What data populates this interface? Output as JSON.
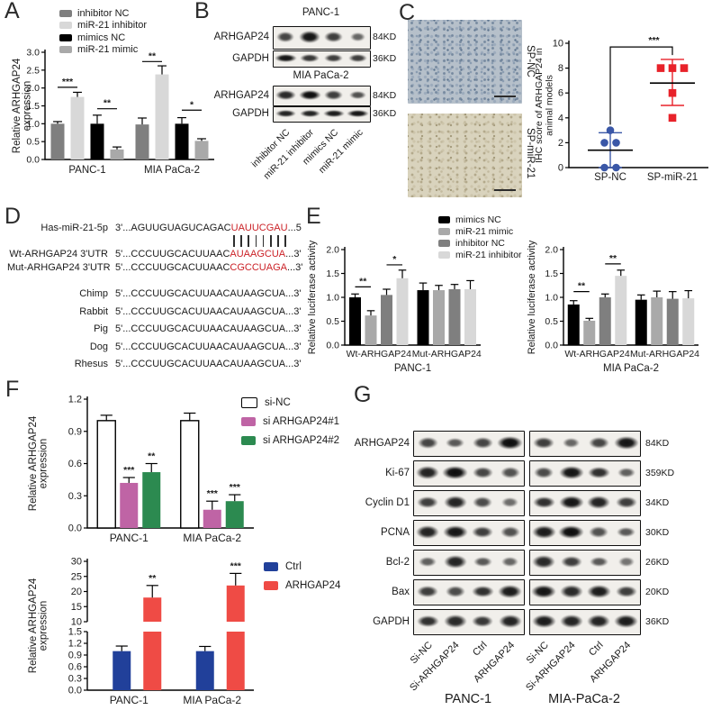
{
  "panels": {
    "A": {
      "label": "A",
      "legend": [
        {
          "label": "inhibitor NC",
          "color": "#7f7f7f"
        },
        {
          "label": "miR-21 inhibitor",
          "color": "#d8d8d8"
        },
        {
          "label": "mimics NC",
          "color": "#000000"
        },
        {
          "label": "miR-21 mimic",
          "color": "#a9a9a9"
        }
      ]
    },
    "B": {
      "label": "B",
      "groups": [
        {
          "title": "PANC-1",
          "rows": [
            {
              "protein": "ARHGAP24",
              "kd": "84KD",
              "bands": [
                0.55,
                0.9,
                0.6,
                0.3
              ]
            },
            {
              "protein": "GAPDH",
              "kd": "36KD",
              "bands": [
                0.9,
                0.65,
                0.6,
                0.6
              ]
            }
          ]
        },
        {
          "title": "MIA PaCa-2",
          "rows": [
            {
              "protein": "ARHGAP24",
              "kd": "84KD",
              "bands": [
                0.75,
                0.95,
                0.6,
                0.45
              ]
            },
            {
              "protein": "GAPDH",
              "kd": "36KD",
              "bands": [
                0.8,
                0.8,
                0.85,
                0.9
              ]
            }
          ]
        }
      ],
      "lanes": [
        "inhibitor NC",
        "miR-21 inhibitor",
        "mimics NC",
        "miR-21 mimic"
      ]
    },
    "C": {
      "label": "C",
      "images": [
        {
          "label": "SP-NC"
        },
        {
          "label": "SP-miR-21"
        }
      ]
    },
    "D": {
      "label": "D",
      "alignment": [
        {
          "name": "Has-miR-21-5p",
          "prefix": "3'...AGUUGUAGUCAGAC",
          "red": "UAUUCGAU",
          "suffix": "...5"
        },
        {
          "name": "Wt-ARHGAP24 3'UTR",
          "prefix": "5'...CCCUUGCACUUAAC",
          "red": "AUAAGCUA",
          "suffix": "...3'"
        },
        {
          "name": "Mut-ARHGAP24 3'UTR",
          "prefix": "5'...CCCUUGCACUUAAC",
          "red": "CGCCUAGA",
          "suffix": "...3'"
        }
      ],
      "pair_count": 8,
      "species": [
        {
          "name": "Chimp",
          "seq": "5'...CCCUUGCACUUAACAUAAGCUA...3'"
        },
        {
          "name": "Rabbit",
          "seq": "5'...CCCUUGCACUUAACAUAAGCUA...3'"
        },
        {
          "name": "Pig",
          "seq": "5'...CCCUUGCACUUAACAUAAGCUA...3'"
        },
        {
          "name": "Dog",
          "seq": "5'...CCCUUGCACUUAACAUAAGCUA...3'"
        },
        {
          "name": "Rhesus",
          "seq": "5'...CCCUUGCACUUAACAUAAGCUA...3'"
        }
      ]
    },
    "E": {
      "label": "E",
      "legend": [
        {
          "label": "mimics NC",
          "color": "#000000"
        },
        {
          "label": "miR-21 mimic",
          "color": "#a9a9a9"
        },
        {
          "label": "inhibitor NC",
          "color": "#7f7f7f"
        },
        {
          "label": "miR-21 inhibitor",
          "color": "#d8d8d8"
        }
      ]
    },
    "F": {
      "label": "F",
      "legend_knockdown": [
        {
          "label": "si-NC",
          "color": "#ffffff"
        },
        {
          "label": "si ARHGAP24#1",
          "color": "#bf64a5"
        },
        {
          "label": "si ARHGAP24#2",
          "color": "#2c8a50"
        }
      ],
      "legend_overexpression": [
        {
          "label": "Ctrl",
          "color": "#21409a"
        },
        {
          "label": "ARHGAP24",
          "color": "#ef4b45"
        }
      ]
    },
    "G": {
      "label": "G",
      "rows": [
        {
          "protein": "ARHGAP24",
          "kd": "84KD",
          "left": [
            0.55,
            0.4,
            0.55,
            0.95
          ],
          "right": [
            0.6,
            0.3,
            0.55,
            0.9
          ]
        },
        {
          "protein": "Ki-67",
          "kd": "359KD",
          "left": [
            0.8,
            0.95,
            0.55,
            0.45
          ],
          "right": [
            0.5,
            0.9,
            0.7,
            0.35
          ]
        },
        {
          "protein": "Cyclin D1",
          "kd": "34KD",
          "left": [
            0.6,
            0.8,
            0.5,
            0.25
          ],
          "right": [
            0.7,
            0.9,
            0.8,
            0.6
          ]
        },
        {
          "protein": "PCNA",
          "kd": "30KD",
          "left": [
            0.8,
            0.9,
            0.6,
            0.45
          ],
          "right": [
            0.85,
            0.95,
            0.45,
            0.4
          ]
        },
        {
          "protein": "Bcl-2",
          "kd": "26KD",
          "left": [
            0.35,
            0.8,
            0.4,
            0.3
          ],
          "right": [
            0.75,
            0.6,
            0.4,
            0.2
          ]
        },
        {
          "protein": "Bax",
          "kd": "20KD",
          "left": [
            0.6,
            0.5,
            0.7,
            0.85
          ],
          "right": [
            0.9,
            0.75,
            0.85,
            0.6
          ]
        },
        {
          "protein": "GAPDH",
          "kd": "36KD",
          "left": [
            0.7,
            0.75,
            0.65,
            0.8
          ],
          "right": [
            0.85,
            0.8,
            0.8,
            0.85
          ]
        }
      ],
      "lanes": [
        "Si-NC",
        "Si-ARHGAP24",
        "Ctrl",
        "ARHGAP24"
      ],
      "group_labels": [
        "PANC-1",
        "MIA-PaCa-2"
      ]
    }
  },
  "chart_data": [
    {
      "id": "A",
      "type": "bar",
      "ylabel": "Relative ARHGAP24 expression",
      "categories": [
        "PANC-1",
        "MIA PaCa-2"
      ],
      "series": [
        {
          "name": "inhibitor NC",
          "color": "#7f7f7f",
          "values": [
            1.0,
            0.98
          ],
          "errors": [
            0.06,
            0.18
          ]
        },
        {
          "name": "miR-21 inhibitor",
          "color": "#d8d8d8",
          "values": [
            1.75,
            2.38
          ],
          "errors": [
            0.13,
            0.24
          ]
        },
        {
          "name": "mimics NC",
          "color": "#000000",
          "values": [
            1.0,
            1.0
          ],
          "errors": [
            0.24,
            0.17
          ]
        },
        {
          "name": "miR-21 mimic",
          "color": "#a9a9a9",
          "values": [
            0.28,
            0.52
          ],
          "errors": [
            0.07,
            0.06
          ]
        }
      ],
      "ylim": [
        0,
        3
      ],
      "yticks": [
        0,
        0.5,
        1,
        1.5,
        2,
        2.5,
        3
      ],
      "ytick_labels": [
        "0.0",
        "0.5",
        "1.0",
        "1.5",
        "2.0",
        "2.5",
        "3.0"
      ],
      "sig": [
        {
          "category": 0,
          "pair": [
            0,
            1
          ],
          "label": "***",
          "y": 2.02
        },
        {
          "category": 0,
          "pair": [
            2,
            3
          ],
          "label": "**",
          "y": 1.42
        },
        {
          "category": 1,
          "pair": [
            0,
            1
          ],
          "label": "**",
          "y": 2.74
        },
        {
          "category": 1,
          "pair": [
            2,
            3
          ],
          "label": "*",
          "y": 1.38
        }
      ]
    },
    {
      "id": "C_IHC",
      "type": "scatter",
      "ylabel": "IHC score of ARHGAP24 in animal models",
      "categories": [
        "SP-NC",
        "SP-miR-21"
      ],
      "groups": [
        {
          "name": "SP-NC",
          "color": "#3a57a7",
          "marker": "circle",
          "points": [
            0,
            0,
            2,
            2,
            3
          ],
          "mean": 1.4,
          "err_low": 0,
          "err_high": 2.8
        },
        {
          "name": "SP-miR-21",
          "color": "#e8222a",
          "marker": "square",
          "points": [
            4,
            6,
            8,
            8,
            8
          ],
          "mean": 6.8,
          "err_low": 5.0,
          "err_high": 8.7
        }
      ],
      "ylim": [
        0,
        10
      ],
      "yticks": [
        0,
        2,
        4,
        6,
        8,
        10
      ],
      "ytick_labels": [
        "0",
        "2",
        "4",
        "6",
        "8",
        "10"
      ],
      "sig": {
        "label": "***",
        "top": 9.7,
        "drop_left": 3.45,
        "drop_right": 9.05
      }
    },
    {
      "id": "E_PANC1",
      "type": "bar",
      "ylabel": "Relative luciferase activity",
      "xlabel": "PANC-1",
      "categories": [
        "Wt-ARHGAP24",
        "Mut-ARHGAP24"
      ],
      "series": [
        {
          "name": "mimics NC",
          "color": "#000000",
          "values": [
            1.0,
            1.15
          ],
          "errors": [
            0.07,
            0.15
          ]
        },
        {
          "name": "miR-21 mimic",
          "color": "#a9a9a9",
          "values": [
            0.62,
            1.15
          ],
          "errors": [
            0.1,
            0.1
          ]
        },
        {
          "name": "inhibitor NC",
          "color": "#7f7f7f",
          "values": [
            1.05,
            1.17
          ],
          "errors": [
            0.12,
            0.1
          ]
        },
        {
          "name": "miR-21 inhibitor",
          "color": "#d8d8d8",
          "values": [
            1.4,
            1.17
          ],
          "errors": [
            0.17,
            0.18
          ]
        }
      ],
      "ylim": [
        0,
        2
      ],
      "yticks": [
        0,
        0.5,
        1,
        1.5,
        2
      ],
      "ytick_labels": [
        "0.0",
        "0.5",
        "1.0",
        "1.5",
        "2.0"
      ],
      "sig": [
        {
          "category": 0,
          "pair": [
            0,
            1
          ],
          "label": "**",
          "y": 1.22
        },
        {
          "category": 0,
          "pair": [
            2,
            3
          ],
          "label": "*",
          "y": 1.68
        }
      ]
    },
    {
      "id": "E_MIA",
      "type": "bar",
      "ylabel": "Relative luciferase activity",
      "xlabel": "MIA PaCa-2",
      "categories": [
        "Wt-ARHGAP24",
        "Mut-ARHGAP24"
      ],
      "series": [
        {
          "name": "mimics NC",
          "color": "#000000",
          "values": [
            0.85,
            0.95
          ],
          "errors": [
            0.08,
            0.1
          ]
        },
        {
          "name": "miR-21 mimic",
          "color": "#a9a9a9",
          "values": [
            0.51,
            1.0
          ],
          "errors": [
            0.05,
            0.13
          ]
        },
        {
          "name": "inhibitor NC",
          "color": "#7f7f7f",
          "values": [
            1.0,
            0.97
          ],
          "errors": [
            0.07,
            0.15
          ]
        },
        {
          "name": "miR-21 inhibitor",
          "color": "#d8d8d8",
          "values": [
            1.45,
            0.98
          ],
          "errors": [
            0.12,
            0.16
          ]
        }
      ],
      "ylim": [
        0,
        2
      ],
      "yticks": [
        0,
        0.5,
        1,
        1.5,
        2
      ],
      "ytick_labels": [
        "0.0",
        "0.5",
        "1.0",
        "1.5",
        "2.0"
      ],
      "sig": [
        {
          "category": 0,
          "pair": [
            0,
            1
          ],
          "label": "**",
          "y": 1.12
        },
        {
          "category": 0,
          "pair": [
            2,
            3
          ],
          "label": "**",
          "y": 1.7
        }
      ]
    },
    {
      "id": "F_KD",
      "type": "bar",
      "ylabel": "Relative ARHGAP24 expression",
      "categories": [
        "PANC-1",
        "MIA PaCa-2"
      ],
      "series": [
        {
          "name": "si-NC",
          "color": "#ffffff",
          "values": [
            1.0,
            1.0
          ],
          "errors": [
            0.05,
            0.07
          ]
        },
        {
          "name": "si ARHGAP24#1",
          "color": "#bf64a5",
          "values": [
            0.42,
            0.17
          ],
          "errors": [
            0.05,
            0.08
          ]
        },
        {
          "name": "si ARHGAP24#2",
          "color": "#2c8a50",
          "values": [
            0.52,
            0.25
          ],
          "errors": [
            0.08,
            0.06
          ]
        }
      ],
      "ylim": [
        0,
        1.2
      ],
      "yticks": [
        0,
        0.3,
        0.6,
        0.9,
        1.2
      ],
      "ytick_labels": [
        "0.0",
        "0.3",
        "0.6",
        "0.9",
        "1.2"
      ],
      "sig": [
        {
          "category": 0,
          "series": 1,
          "label": "***"
        },
        {
          "category": 0,
          "series": 2,
          "label": "**"
        },
        {
          "category": 1,
          "series": 1,
          "label": "***"
        },
        {
          "category": 1,
          "series": 2,
          "label": "***"
        }
      ]
    },
    {
      "id": "F_OE",
      "type": "bar-broken",
      "ylabel": "Relative ARHGAP24 expression",
      "categories": [
        "PANC-1",
        "MIA PaCa-2"
      ],
      "series": [
        {
          "name": "Ctrl",
          "color": "#21409a",
          "values": [
            1.0,
            1.0
          ],
          "errors": [
            0.13,
            0.12
          ]
        },
        {
          "name": "ARHGAP24",
          "color": "#ef4b45",
          "values": [
            18,
            22
          ],
          "errors": [
            4,
            4
          ]
        }
      ],
      "axis_break": {
        "lower": [
          0,
          1.5
        ],
        "lower_ticks": [
          0,
          0.3,
          0.6,
          0.9,
          1.2,
          1.5
        ],
        "lower_tick_labels": [
          "0.0",
          "0.3",
          "0.6",
          "0.9",
          "1.2",
          "1.5"
        ],
        "upper": [
          10,
          30
        ],
        "upper_ticks": [
          10,
          15,
          20,
          25,
          30
        ],
        "upper_tick_labels": [
          "10",
          "15",
          "20",
          "25",
          "30"
        ]
      },
      "sig": [
        {
          "category": 0,
          "series": 1,
          "label": "**"
        },
        {
          "category": 1,
          "series": 1,
          "label": "***"
        }
      ]
    }
  ]
}
